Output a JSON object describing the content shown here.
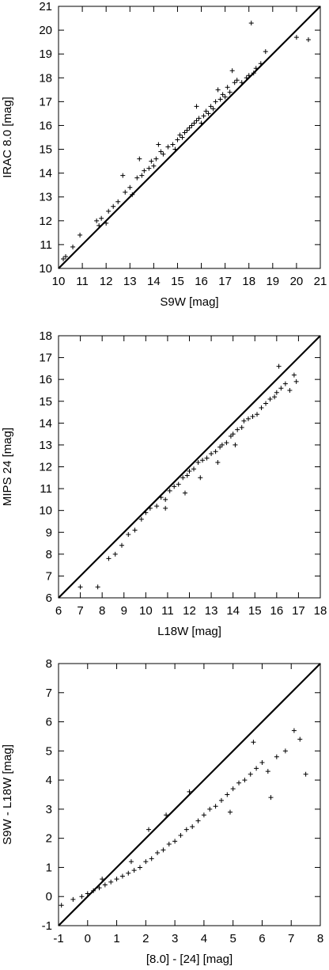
{
  "chart_data": [
    {
      "type": "scatter",
      "xlabel": "S9W [mag]",
      "ylabel": "IRAC 8.0 [mag]",
      "xlim": [
        10,
        21
      ],
      "ylim": [
        10,
        21
      ],
      "xticks": [
        "10",
        "11",
        "12",
        "13",
        "14",
        "15",
        "16",
        "17",
        "18",
        "19",
        "20",
        "21"
      ],
      "yticks": [
        "10",
        "11",
        "12",
        "13",
        "14",
        "15",
        "16",
        "17",
        "18",
        "19",
        "20",
        "21"
      ],
      "reference_line": {
        "x": [
          10,
          21
        ],
        "y": [
          10,
          21
        ]
      },
      "marker": "+",
      "grid": false,
      "x": [
        10.2,
        10.3,
        10.6,
        10.9,
        11.6,
        11.8,
        11.7,
        12.0,
        12.1,
        12.3,
        12.5,
        12.8,
        13.0,
        13.3,
        13.1,
        13.5,
        13.6,
        13.8,
        13.9,
        14.0,
        14.1,
        14.3,
        14.4,
        14.6,
        14.8,
        14.9,
        15.0,
        15.1,
        15.2,
        15.3,
        15.4,
        15.5,
        15.6,
        15.7,
        15.8,
        15.9,
        16.0,
        16.1,
        16.2,
        16.3,
        16.4,
        16.5,
        16.6,
        16.8,
        16.9,
        17.0,
        17.1,
        17.2,
        17.4,
        17.5,
        17.7,
        17.9,
        18.0,
        18.2,
        18.3,
        18.5,
        18.7,
        17.3,
        16.7,
        15.8,
        14.2,
        13.4,
        12.7,
        18.1,
        20.0,
        20.5
      ],
      "y": [
        10.4,
        10.5,
        10.9,
        11.4,
        12.0,
        12.1,
        11.8,
        11.9,
        12.4,
        12.6,
        12.8,
        13.2,
        13.4,
        13.8,
        13.1,
        13.9,
        14.1,
        14.2,
        14.5,
        14.3,
        14.6,
        14.9,
        14.8,
        15.1,
        15.2,
        15.0,
        15.4,
        15.6,
        15.5,
        15.7,
        15.8,
        15.9,
        16.0,
        16.1,
        16.2,
        16.3,
        16.1,
        16.4,
        16.6,
        16.5,
        16.8,
        16.7,
        17.0,
        17.1,
        17.3,
        17.2,
        17.6,
        17.4,
        17.8,
        17.9,
        17.8,
        18.0,
        18.1,
        18.2,
        18.4,
        18.6,
        19.1,
        18.3,
        17.5,
        16.8,
        15.2,
        14.6,
        13.9,
        20.3,
        19.7,
        19.6
      ]
    },
    {
      "type": "scatter",
      "xlabel": "L18W [mag]",
      "ylabel": "MIPS 24 [mag]",
      "xlim": [
        6,
        18
      ],
      "ylim": [
        6,
        18
      ],
      "xticks": [
        "6",
        "7",
        "8",
        "9",
        "10",
        "11",
        "12",
        "13",
        "14",
        "15",
        "16",
        "17",
        "18"
      ],
      "yticks": [
        "6",
        "7",
        "8",
        "9",
        "10",
        "11",
        "12",
        "13",
        "14",
        "15",
        "16",
        "17",
        "18"
      ],
      "reference_line": {
        "x": [
          6,
          18
        ],
        "y": [
          6,
          18
        ]
      },
      "marker": "+",
      "grid": false,
      "x": [
        7.0,
        7.8,
        8.3,
        8.6,
        8.9,
        9.2,
        9.5,
        9.8,
        10.0,
        10.2,
        10.5,
        10.7,
        10.9,
        11.1,
        11.3,
        11.5,
        11.7,
        11.9,
        12.0,
        12.2,
        12.4,
        12.6,
        12.8,
        13.0,
        13.2,
        13.4,
        13.5,
        13.7,
        13.9,
        14.0,
        14.2,
        14.4,
        14.5,
        14.7,
        14.9,
        15.1,
        15.3,
        15.5,
        15.7,
        15.9,
        16.0,
        16.2,
        16.4,
        16.6,
        16.8,
        16.9,
        12.5,
        13.3,
        14.1,
        11.8,
        10.9,
        16.1
      ],
      "y": [
        6.5,
        6.5,
        7.8,
        8.0,
        8.4,
        8.9,
        9.1,
        9.6,
        9.9,
        10.1,
        10.2,
        10.6,
        10.5,
        10.9,
        11.1,
        11.2,
        11.5,
        11.6,
        11.8,
        11.9,
        12.2,
        12.3,
        12.4,
        12.6,
        12.7,
        12.9,
        13.0,
        13.1,
        13.4,
        13.5,
        13.7,
        13.8,
        14.1,
        14.2,
        14.3,
        14.4,
        14.7,
        14.9,
        15.1,
        15.2,
        15.4,
        15.6,
        15.8,
        15.5,
        16.2,
        15.9,
        11.5,
        12.2,
        13.0,
        10.8,
        10.1,
        16.6
      ]
    },
    {
      "type": "scatter",
      "xlabel": "[8.0] - [24] [mag]",
      "ylabel": "S9W - L18W [mag]",
      "xlim": [
        -1,
        8
      ],
      "ylim": [
        -1,
        8
      ],
      "xticks": [
        "-1",
        "0",
        "1",
        "2",
        "3",
        "4",
        "5",
        "6",
        "7",
        "8"
      ],
      "yticks": [
        "-1",
        "0",
        "1",
        "2",
        "3",
        "4",
        "5",
        "6",
        "7",
        "8"
      ],
      "reference_line": {
        "x": [
          -1,
          8
        ],
        "y": [
          -1,
          8
        ]
      },
      "marker": "+",
      "grid": false,
      "x": [
        -0.9,
        -0.5,
        -0.2,
        0.0,
        0.2,
        0.4,
        0.6,
        0.8,
        1.0,
        1.2,
        1.4,
        1.6,
        1.8,
        2.0,
        2.2,
        2.4,
        2.6,
        2.8,
        3.0,
        3.2,
        3.4,
        3.6,
        3.8,
        4.0,
        4.2,
        4.4,
        4.6,
        4.8,
        5.0,
        5.2,
        5.4,
        5.6,
        5.8,
        6.0,
        6.2,
        6.5,
        6.8,
        7.1,
        7.3,
        7.5,
        2.1,
        3.5,
        4.9,
        6.3,
        1.5,
        0.5,
        2.7,
        5.7
      ],
      "y": [
        -0.3,
        -0.1,
        0.0,
        0.1,
        0.2,
        0.3,
        0.4,
        0.5,
        0.6,
        0.7,
        0.8,
        0.9,
        1.0,
        1.2,
        1.3,
        1.5,
        1.6,
        1.8,
        1.9,
        2.1,
        2.3,
        2.4,
        2.6,
        2.8,
        3.0,
        3.1,
        3.3,
        3.5,
        3.7,
        3.9,
        4.0,
        4.2,
        4.4,
        4.6,
        4.3,
        4.8,
        5.0,
        5.7,
        5.4,
        4.2,
        2.3,
        3.6,
        2.9,
        3.4,
        1.2,
        0.6,
        2.8,
        5.3
      ]
    }
  ]
}
